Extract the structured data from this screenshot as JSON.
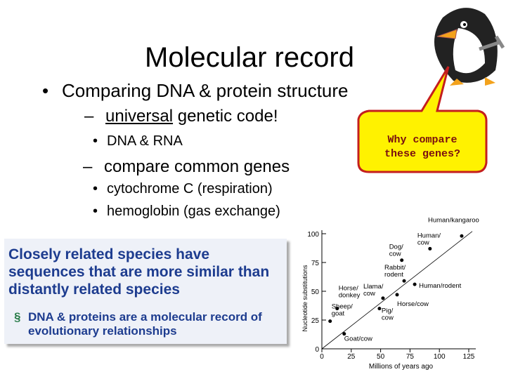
{
  "title": "Molecular record",
  "bullets": [
    {
      "level": 1,
      "marker": "•",
      "text": "Comparing DNA & protein structure"
    },
    {
      "level": 2,
      "marker": "–",
      "parts": [
        "universal",
        " genetic code!"
      ]
    },
    {
      "level": 3,
      "marker": "•",
      "text": "DNA & RNA"
    },
    {
      "level": 2,
      "marker": "–",
      "text": "compare common genes"
    },
    {
      "level": 3,
      "marker": "•",
      "text": "cytochrome C (respiration)"
    },
    {
      "level": 3,
      "marker": "•",
      "text": "hemoglobin (gas exchange)"
    }
  ],
  "callout": [
    "Why compare",
    "these genes?"
  ],
  "box": {
    "heading": "Closely related species have sequences that are more similar than distantly related species",
    "marker": "§",
    "point": "DNA & proteins are a molecular record of evolutionary relationships"
  },
  "chart_data": {
    "type": "scatter",
    "xlabel": "Millions of years ago",
    "ylabel": "Nucleotide substitutions",
    "xlim": [
      0,
      125
    ],
    "ylim": [
      0,
      100
    ],
    "xticks": [
      0,
      25,
      50,
      75,
      100,
      125
    ],
    "yticks": [
      0,
      25,
      50,
      75,
      100
    ],
    "color": "#000000",
    "labels": [
      "Sheep/ goat",
      "Horse/ donkey",
      "Goat/cow",
      "Llama/ cow",
      "Pig/ cow",
      "Horse/cow",
      "Rabbit/ rodent",
      "Human/rodent",
      "Dog/ cow",
      "Human/ cow",
      "Human/kangaroo"
    ],
    "x": [
      7,
      13,
      19,
      52,
      49,
      64,
      70,
      79,
      68,
      92,
      119
    ],
    "y": [
      24,
      35,
      13,
      44,
      35,
      47,
      59,
      56,
      77,
      87,
      98
    ],
    "trend_line": {
      "x": [
        0,
        128
      ],
      "y": [
        0,
        102
      ]
    }
  }
}
